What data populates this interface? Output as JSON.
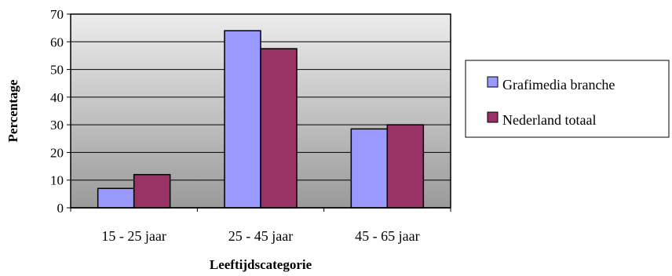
{
  "chart_data": {
    "type": "bar",
    "categories": [
      "15 - 25 jaar",
      "25 - 45 jaar",
      "45 - 65 jaar"
    ],
    "series": [
      {
        "name": "Grafimedia branche",
        "values": [
          7,
          64,
          28.5
        ],
        "color": "#9999ff"
      },
      {
        "name": "Nederland totaal",
        "values": [
          12,
          57.5,
          30
        ],
        "color": "#993366"
      }
    ],
    "xlabel": "Leeftijdscategorie",
    "ylabel": "Percentage",
    "ylim": [
      0,
      70
    ],
    "yticks": [
      0,
      10,
      20,
      30,
      40,
      50,
      60,
      70
    ],
    "grid": true,
    "legend_position": "right",
    "plot_background": "gray-gradient"
  }
}
